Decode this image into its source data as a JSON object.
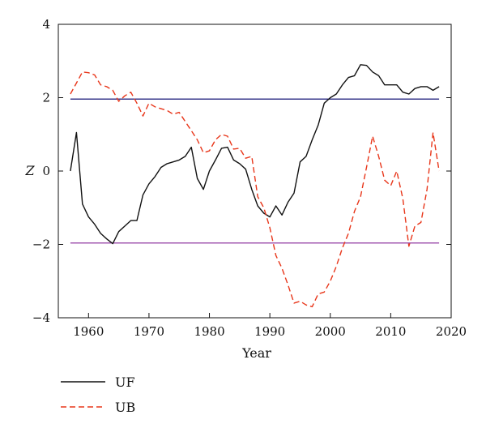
{
  "chart_data": {
    "type": "line",
    "xlabel": "Year",
    "ylabel": "Z",
    "xlim": [
      1955,
      2020
    ],
    "ylim": [
      -4,
      4
    ],
    "xticks": [
      1960,
      1970,
      1980,
      1990,
      2000,
      2010,
      2020
    ],
    "yticks": [
      -4,
      -2,
      0,
      2,
      4
    ],
    "grid": false,
    "legend_position": "bottom-left, below plot",
    "series": [
      {
        "name": "UF",
        "style": "solid",
        "color": "#111111",
        "x": [
          1957,
          1958,
          1959,
          1960,
          1961,
          1962,
          1963,
          1964,
          1965,
          1966,
          1967,
          1968,
          1969,
          1970,
          1971,
          1972,
          1973,
          1974,
          1975,
          1976,
          1977,
          1978,
          1979,
          1980,
          1981,
          1982,
          1983,
          1984,
          1985,
          1986,
          1987,
          1988,
          1989,
          1990,
          1991,
          1992,
          1993,
          1994,
          1995,
          1996,
          1997,
          1998,
          1999,
          2000,
          2001,
          2002,
          2003,
          2004,
          2005,
          2006,
          2007,
          2008,
          2009,
          2010,
          2011,
          2012,
          2013,
          2014,
          2015,
          2016,
          2017,
          2018
        ],
        "values": [
          0.0,
          1.05,
          -0.9,
          -1.25,
          -1.45,
          -1.7,
          -1.85,
          -1.98,
          -1.65,
          -1.5,
          -1.35,
          -1.35,
          -0.65,
          -0.35,
          -0.15,
          0.1,
          0.2,
          0.25,
          0.3,
          0.4,
          0.65,
          -0.2,
          -0.5,
          0.0,
          0.3,
          0.62,
          0.65,
          0.3,
          0.2,
          0.05,
          -0.5,
          -0.95,
          -1.15,
          -1.25,
          -0.95,
          -1.2,
          -0.85,
          -0.6,
          0.25,
          0.4,
          0.85,
          1.25,
          1.85,
          2.0,
          2.1,
          2.35,
          2.55,
          2.6,
          2.9,
          2.88,
          2.7,
          2.6,
          2.35,
          2.35,
          2.35,
          2.15,
          2.1,
          2.25,
          2.3,
          2.3,
          2.2,
          2.3
        ]
      },
      {
        "name": "UB",
        "style": "dashed",
        "color": "#e8361a",
        "x": [
          1957,
          1958,
          1959,
          1960,
          1961,
          1962,
          1963,
          1964,
          1965,
          1966,
          1967,
          1968,
          1969,
          1970,
          1971,
          1972,
          1973,
          1974,
          1975,
          1976,
          1977,
          1978,
          1979,
          1980,
          1981,
          1982,
          1983,
          1984,
          1985,
          1986,
          1987,
          1988,
          1989,
          1990,
          1991,
          1992,
          1993,
          1994,
          1995,
          1996,
          1997,
          1998,
          1999,
          2000,
          2001,
          2002,
          2003,
          2004,
          2005,
          2006,
          2007,
          2008,
          2009,
          2010,
          2011,
          2012,
          2013,
          2014,
          2015,
          2016,
          2017,
          2018
        ],
        "values": [
          2.1,
          2.4,
          2.7,
          2.68,
          2.62,
          2.35,
          2.3,
          2.2,
          1.9,
          2.05,
          2.15,
          1.85,
          1.5,
          1.85,
          1.75,
          1.7,
          1.65,
          1.55,
          1.6,
          1.35,
          1.1,
          0.85,
          0.5,
          0.55,
          0.85,
          1.0,
          0.95,
          0.6,
          0.62,
          0.35,
          0.4,
          -0.7,
          -1.0,
          -1.55,
          -2.3,
          -2.65,
          -3.1,
          -3.6,
          -3.55,
          -3.65,
          -3.7,
          -3.35,
          -3.3,
          -3.0,
          -2.6,
          -2.1,
          -1.7,
          -1.1,
          -0.7,
          0.1,
          0.95,
          0.4,
          -0.25,
          -0.4,
          0.0,
          -0.75,
          -2.05,
          -1.5,
          -1.4,
          -0.5,
          1.05,
          0.0
        ]
      }
    ],
    "reference_lines": [
      {
        "y": 1.96,
        "color": "#3a3a8c"
      },
      {
        "y": -1.96,
        "color": "#a35ab0"
      }
    ]
  }
}
